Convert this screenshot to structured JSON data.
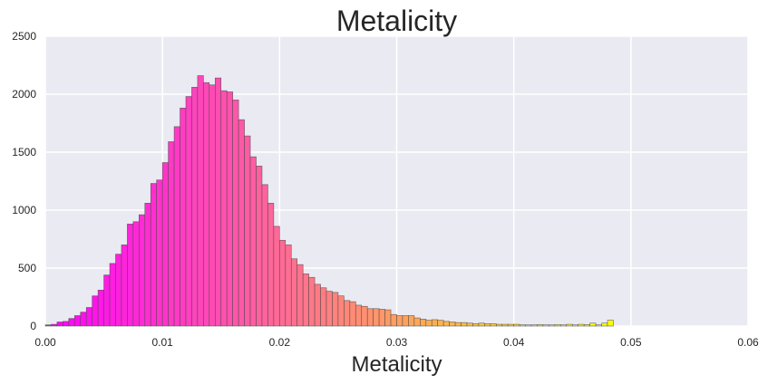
{
  "chart_data": {
    "type": "bar",
    "title": "Metalicity",
    "xlabel": "Metalicity",
    "ylabel": "",
    "xlim": [
      0.0,
      0.06
    ],
    "ylim": [
      0,
      2500
    ],
    "xticks": [
      "0.00",
      "0.01",
      "0.02",
      "0.03",
      "0.04",
      "0.05",
      "0.06"
    ],
    "yticks": [
      "0",
      "500",
      "1000",
      "1500",
      "2000",
      "2500"
    ],
    "grid": true,
    "background_color": "#eaeaf2",
    "colormap": "spring",
    "bin_width": 0.0005,
    "bin_start": 0.0,
    "values": [
      10,
      15,
      35,
      40,
      65,
      90,
      120,
      160,
      260,
      310,
      440,
      540,
      620,
      700,
      880,
      900,
      960,
      1060,
      1230,
      1260,
      1410,
      1590,
      1720,
      1880,
      1980,
      2060,
      2160,
      2100,
      2080,
      2140,
      2030,
      2020,
      1950,
      1780,
      1640,
      1460,
      1380,
      1220,
      1060,
      860,
      740,
      700,
      580,
      530,
      450,
      420,
      360,
      330,
      300,
      290,
      260,
      220,
      210,
      180,
      170,
      150,
      150,
      145,
      140,
      100,
      90,
      90,
      90,
      70,
      60,
      50,
      55,
      50,
      40,
      35,
      30,
      30,
      25,
      20,
      25,
      20,
      20,
      15,
      15,
      15,
      15,
      10,
      10,
      10,
      12,
      10,
      10,
      12,
      10,
      15,
      10,
      15,
      12,
      25,
      10,
      25,
      50
    ]
  }
}
